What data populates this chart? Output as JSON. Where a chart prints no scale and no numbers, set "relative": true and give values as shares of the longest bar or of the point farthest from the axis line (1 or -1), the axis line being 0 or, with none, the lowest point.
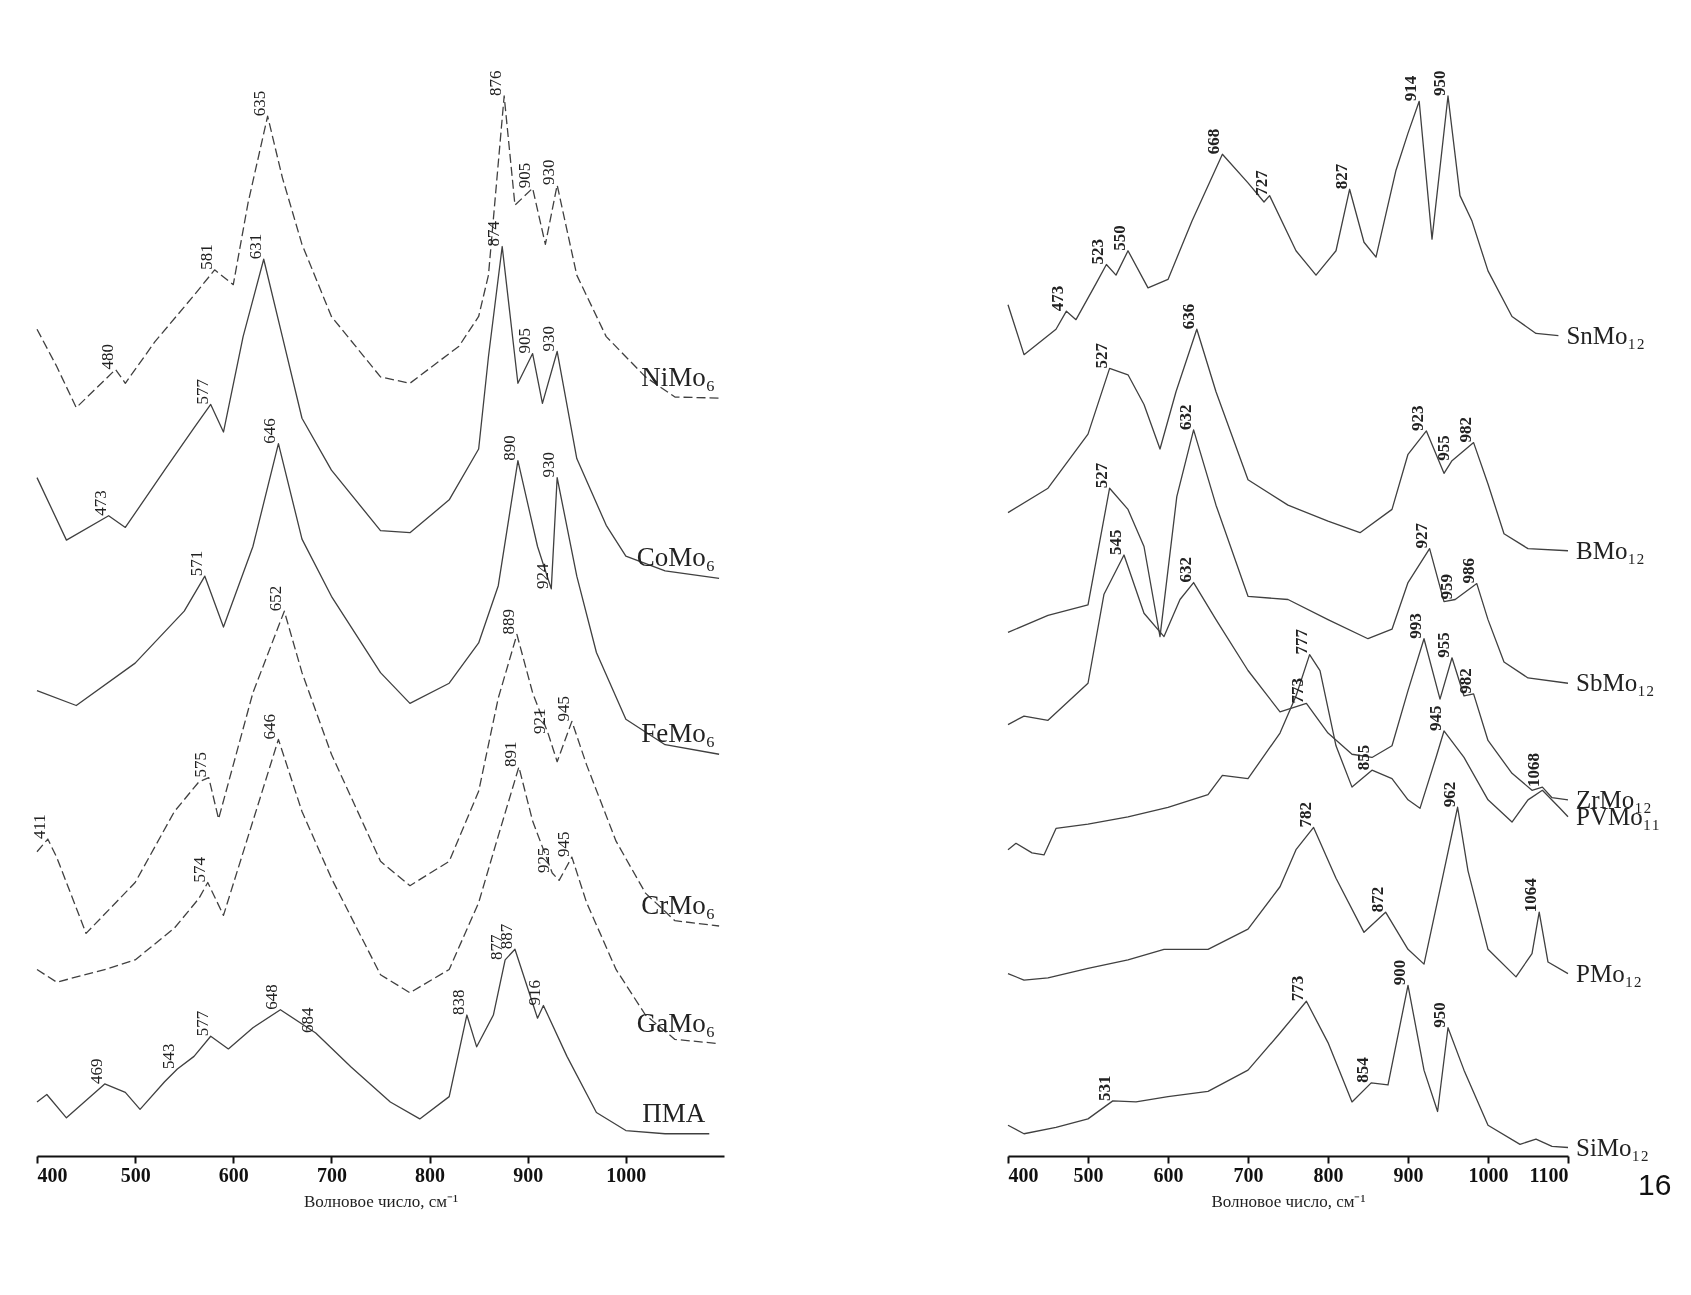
{
  "chart_data": [
    {
      "type": "line",
      "relative": true,
      "xlim": [
        400,
        1100
      ],
      "xticks": [
        400,
        500,
        600,
        700,
        800,
        900,
        1000
      ],
      "xlabel": "Волновое число, см⁻¹",
      "grid": false,
      "series": [
        {
          "name": "NiMo₆",
          "color": "#404040",
          "line_style": "dashed",
          "x": [
            400,
            420,
            440,
            480,
            490,
            520,
            560,
            581,
            600,
            615,
            635,
            650,
            670,
            700,
            750,
            780,
            830,
            850,
            860,
            876,
            887,
            905,
            918,
            930,
            950,
            980,
            1020,
            1050,
            1095
          ],
          "values": [
            0.78,
            0.745,
            0.706,
            0.742,
            0.729,
            0.768,
            0.812,
            0.836,
            0.822,
            0.899,
            0.981,
            0.923,
            0.86,
            0.792,
            0.735,
            0.729,
            0.764,
            0.792,
            0.831,
            1.0,
            0.897,
            0.913,
            0.86,
            0.916,
            0.831,
            0.773,
            0.735,
            0.716,
            0.715
          ]
        },
        {
          "name": "CoMo₆",
          "color": "#404040",
          "line_style": "solid",
          "x": [
            400,
            430,
            473,
            490,
            530,
            560,
            577,
            590,
            610,
            631,
            650,
            670,
            700,
            750,
            780,
            820,
            850,
            860,
            874,
            890,
            905,
            915,
            930,
            950,
            980,
            1000,
            1040,
            1095
          ],
          "values": [
            0.64,
            0.581,
            0.604,
            0.593,
            0.647,
            0.687,
            0.709,
            0.683,
            0.773,
            0.846,
            0.773,
            0.696,
            0.647,
            0.59,
            0.588,
            0.619,
            0.667,
            0.754,
            0.858,
            0.729,
            0.757,
            0.71,
            0.759,
            0.658,
            0.595,
            0.566,
            0.552,
            0.545
          ]
        },
        {
          "name": "FeMo₆",
          "color": "#404040",
          "line_style": "solid",
          "x": [
            400,
            440,
            500,
            550,
            571,
            590,
            620,
            646,
            670,
            700,
            750,
            780,
            820,
            850,
            870,
            890,
            910,
            924,
            930,
            950,
            970,
            1000,
            1040,
            1095
          ],
          "values": [
            0.439,
            0.425,
            0.465,
            0.514,
            0.547,
            0.499,
            0.575,
            0.672,
            0.582,
            0.528,
            0.456,
            0.427,
            0.446,
            0.484,
            0.538,
            0.656,
            0.575,
            0.535,
            0.64,
            0.547,
            0.475,
            0.412,
            0.388,
            0.379
          ]
        },
        {
          "name": "CrMo₆",
          "color": "#404040",
          "line_style": "dashed",
          "x": [
            400,
            411,
            420,
            450,
            500,
            540,
            565,
            575,
            585,
            620,
            652,
            670,
            700,
            750,
            780,
            820,
            850,
            870,
            889,
            905,
            921,
            930,
            945,
            960,
            990,
            1020,
            1050,
            1095
          ],
          "values": [
            0.287,
            0.299,
            0.282,
            0.21,
            0.258,
            0.325,
            0.353,
            0.357,
            0.318,
            0.437,
            0.514,
            0.456,
            0.379,
            0.278,
            0.255,
            0.278,
            0.344,
            0.432,
            0.492,
            0.437,
            0.398,
            0.372,
            0.41,
            0.369,
            0.297,
            0.248,
            0.222,
            0.217
          ]
        },
        {
          "name": "GaMo₆",
          "color": "#404040",
          "line_style": "dashed",
          "x": [
            400,
            420,
            470,
            500,
            540,
            565,
            574,
            590,
            620,
            646,
            670,
            700,
            750,
            780,
            820,
            850,
            870,
            891,
            905,
            925,
            932,
            945,
            960,
            990,
            1020,
            1050,
            1095
          ],
          "values": [
            0.176,
            0.164,
            0.176,
            0.185,
            0.215,
            0.243,
            0.258,
            0.227,
            0.316,
            0.393,
            0.325,
            0.262,
            0.171,
            0.154,
            0.176,
            0.239,
            0.302,
            0.367,
            0.316,
            0.267,
            0.26,
            0.282,
            0.239,
            0.176,
            0.133,
            0.11,
            0.106
          ]
        },
        {
          "name": "ПМА",
          "color": "#404040",
          "line_style": "solid",
          "x": [
            400,
            410,
            430,
            469,
            490,
            505,
            530,
            543,
            560,
            577,
            595,
            620,
            648,
            684,
            720,
            760,
            790,
            820,
            838,
            848,
            865,
            877,
            887,
            910,
            916,
            940,
            970,
            1000,
            1040,
            1085
          ],
          "values": [
            0.051,
            0.058,
            0.036,
            0.068,
            0.06,
            0.044,
            0.07,
            0.082,
            0.094,
            0.113,
            0.101,
            0.121,
            0.138,
            0.116,
            0.084,
            0.051,
            0.035,
            0.056,
            0.133,
            0.103,
            0.133,
            0.185,
            0.195,
            0.13,
            0.142,
            0.094,
            0.041,
            0.024,
            0.021,
            0.021
          ]
        }
      ],
      "annotations": [
        {
          "text": "480",
          "x": 480,
          "y": 0.742
        },
        {
          "text": "581",
          "x": 581,
          "y": 0.836
        },
        {
          "text": "635",
          "x": 635,
          "y": 0.981
        },
        {
          "text": "876",
          "x": 876,
          "y": 1.0
        },
        {
          "text": "905",
          "x": 905,
          "y": 0.913
        },
        {
          "text": "930",
          "x": 930,
          "y": 0.916
        },
        {
          "text": "473",
          "x": 473,
          "y": 0.604
        },
        {
          "text": "577",
          "x": 577,
          "y": 0.709
        },
        {
          "text": "631",
          "x": 631,
          "y": 0.846
        },
        {
          "text": "874",
          "x": 874,
          "y": 0.858
        },
        {
          "text": "905",
          "x": 905,
          "y": 0.757
        },
        {
          "text": "930",
          "x": 930,
          "y": 0.759
        },
        {
          "text": "571",
          "x": 571,
          "y": 0.547
        },
        {
          "text": "646",
          "x": 646,
          "y": 0.672
        },
        {
          "text": "890",
          "x": 890,
          "y": 0.656
        },
        {
          "text": "924",
          "x": 924,
          "y": 0.535
        },
        {
          "text": "930",
          "x": 930,
          "y": 0.64
        },
        {
          "text": "411",
          "x": 411,
          "y": 0.299
        },
        {
          "text": "575",
          "x": 575,
          "y": 0.357
        },
        {
          "text": "652",
          "x": 652,
          "y": 0.514
        },
        {
          "text": "889",
          "x": 889,
          "y": 0.492
        },
        {
          "text": "921",
          "x": 921,
          "y": 0.398
        },
        {
          "text": "945",
          "x": 945,
          "y": 0.41
        },
        {
          "text": "574",
          "x": 574,
          "y": 0.258
        },
        {
          "text": "646",
          "x": 646,
          "y": 0.393
        },
        {
          "text": "891",
          "x": 891,
          "y": 0.367
        },
        {
          "text": "925",
          "x": 925,
          "y": 0.267
        },
        {
          "text": "945",
          "x": 945,
          "y": 0.282
        },
        {
          "text": "469",
          "x": 469,
          "y": 0.068
        },
        {
          "text": "543",
          "x": 543,
          "y": 0.082
        },
        {
          "text": "577",
          "x": 577,
          "y": 0.113
        },
        {
          "text": "648",
          "x": 648,
          "y": 0.138
        },
        {
          "text": "684",
          "x": 684,
          "y": 0.116
        },
        {
          "text": "838",
          "x": 838,
          "y": 0.133
        },
        {
          "text": "877",
          "x": 877,
          "y": 0.185
        },
        {
          "text": "887",
          "x": 887,
          "y": 0.195
        },
        {
          "text": "916",
          "x": 916,
          "y": 0.142
        }
      ]
    },
    {
      "type": "line",
      "relative": true,
      "xlim": [
        400,
        1100
      ],
      "xticks": [
        400,
        500,
        600,
        700,
        800,
        900,
        1000,
        1100
      ],
      "xlabel": "Волновое число, см⁻¹",
      "grid": false,
      "series": [
        {
          "name": "SnMo₁₂",
          "color": "#404040",
          "line_style": "solid",
          "x": [
            400,
            420,
            460,
            473,
            485,
            510,
            523,
            535,
            550,
            575,
            600,
            630,
            668,
            700,
            720,
            727,
            760,
            785,
            810,
            827,
            845,
            860,
            885,
            900,
            914,
            930,
            950,
            965,
            980,
            1000,
            1030,
            1060,
            1088
          ],
          "values": [
            0.803,
            0.756,
            0.78,
            0.797,
            0.789,
            0.823,
            0.841,
            0.831,
            0.854,
            0.819,
            0.827,
            0.882,
            0.945,
            0.918,
            0.9,
            0.906,
            0.854,
            0.831,
            0.854,
            0.912,
            0.862,
            0.848,
            0.93,
            0.965,
            0.995,
            0.865,
            1.0,
            0.906,
            0.882,
            0.835,
            0.792,
            0.776,
            0.774
          ]
        },
        {
          "name": "BMo₁₂",
          "color": "#404040",
          "line_style": "solid",
          "x": [
            400,
            450,
            500,
            527,
            550,
            570,
            590,
            610,
            636,
            660,
            700,
            750,
            800,
            840,
            880,
            900,
            923,
            945,
            955,
            982,
            1000,
            1020,
            1050,
            1100
          ],
          "values": [
            0.607,
            0.63,
            0.681,
            0.743,
            0.737,
            0.709,
            0.667,
            0.721,
            0.78,
            0.721,
            0.638,
            0.614,
            0.599,
            0.588,
            0.61,
            0.662,
            0.684,
            0.644,
            0.656,
            0.673,
            0.634,
            0.587,
            0.573,
            0.571
          ]
        },
        {
          "name": "SbMo₁₂",
          "color": "#404040",
          "line_style": "solid",
          "x": [
            400,
            450,
            500,
            527,
            550,
            570,
            590,
            611,
            632,
            660,
            700,
            750,
            800,
            850,
            880,
            900,
            927,
            945,
            959,
            986,
            1000,
            1020,
            1050,
            1100
          ],
          "values": [
            0.494,
            0.51,
            0.52,
            0.63,
            0.61,
            0.575,
            0.49,
            0.622,
            0.685,
            0.614,
            0.528,
            0.525,
            0.506,
            0.488,
            0.497,
            0.541,
            0.573,
            0.523,
            0.525,
            0.54,
            0.506,
            0.466,
            0.451,
            0.446
          ]
        },
        {
          "name": "ZrMo₁₂",
          "color": "#404040",
          "line_style": "solid",
          "x": [
            400,
            420,
            450,
            500,
            520,
            545,
            570,
            595,
            615,
            632,
            660,
            700,
            740,
            773,
            800,
            830,
            855,
            880,
            900,
            920,
            940,
            955,
            970,
            982,
            1000,
            1030,
            1055,
            1068,
            1080,
            1100
          ],
          "values": [
            0.407,
            0.415,
            0.411,
            0.446,
            0.53,
            0.567,
            0.512,
            0.49,
            0.525,
            0.541,
            0.506,
            0.458,
            0.419,
            0.427,
            0.399,
            0.379,
            0.376,
            0.387,
            0.439,
            0.488,
            0.431,
            0.47,
            0.434,
            0.436,
            0.392,
            0.361,
            0.345,
            0.348,
            0.338,
            0.336
          ]
        },
        {
          "name": "PVMo₁₁",
          "color": "#404040",
          "line_style": "solid",
          "x": [
            400,
            410,
            430,
            445,
            460,
            500,
            550,
            600,
            650,
            668,
            700,
            740,
            760,
            777,
            790,
            810,
            830,
            855,
            880,
            900,
            915,
            935,
            945,
            970,
            1000,
            1030,
            1050,
            1068,
            1090,
            1100
          ],
          "values": [
            0.289,
            0.295,
            0.286,
            0.284,
            0.309,
            0.313,
            0.32,
            0.329,
            0.341,
            0.359,
            0.356,
            0.399,
            0.434,
            0.473,
            0.458,
            0.387,
            0.348,
            0.364,
            0.356,
            0.336,
            0.328,
            0.376,
            0.401,
            0.376,
            0.336,
            0.315,
            0.336,
            0.345,
            0.328,
            0.32
          ]
        },
        {
          "name": "PMo₁₂",
          "color": "#404040",
          "line_style": "solid",
          "x": [
            400,
            420,
            450,
            500,
            550,
            595,
            650,
            700,
            740,
            760,
            782,
            810,
            845,
            872,
            900,
            920,
            945,
            962,
            975,
            1000,
            1035,
            1055,
            1064,
            1075,
            1100
          ],
          "values": [
            0.172,
            0.166,
            0.168,
            0.177,
            0.185,
            0.195,
            0.195,
            0.214,
            0.254,
            0.289,
            0.31,
            0.262,
            0.211,
            0.23,
            0.195,
            0.181,
            0.269,
            0.329,
            0.269,
            0.195,
            0.169,
            0.191,
            0.23,
            0.183,
            0.172
          ]
        },
        {
          "name": "SiMo₁₂",
          "color": "#404040",
          "line_style": "solid",
          "x": [
            400,
            420,
            460,
            500,
            531,
            560,
            600,
            650,
            700,
            740,
            773,
            800,
            830,
            854,
            875,
            900,
            920,
            937,
            950,
            970,
            1000,
            1040,
            1060,
            1080,
            1100
          ],
          "values": [
            0.029,
            0.021,
            0.027,
            0.035,
            0.052,
            0.051,
            0.056,
            0.061,
            0.081,
            0.116,
            0.146,
            0.107,
            0.051,
            0.069,
            0.067,
            0.161,
            0.081,
            0.042,
            0.121,
            0.081,
            0.029,
            0.011,
            0.016,
            0.009,
            0.008
          ]
        }
      ],
      "annotations": [
        {
          "text": "473",
          "x": 473,
          "y": 0.797
        },
        {
          "text": "523",
          "x": 523,
          "y": 0.841
        },
        {
          "text": "550",
          "x": 550,
          "y": 0.854
        },
        {
          "text": "668",
          "x": 668,
          "y": 0.945
        },
        {
          "text": "727",
          "x": 727,
          "y": 0.906
        },
        {
          "text": "827",
          "x": 827,
          "y": 0.912
        },
        {
          "text": "914",
          "x": 914,
          "y": 0.995
        },
        {
          "text": "950",
          "x": 950,
          "y": 1.0
        },
        {
          "text": "527",
          "x": 527,
          "y": 0.743
        },
        {
          "text": "636",
          "x": 636,
          "y": 0.78
        },
        {
          "text": "923",
          "x": 923,
          "y": 0.684
        },
        {
          "text": "955",
          "x": 955,
          "y": 0.656
        },
        {
          "text": "982",
          "x": 982,
          "y": 0.673
        },
        {
          "text": "527",
          "x": 527,
          "y": 0.63
        },
        {
          "text": "632",
          "x": 632,
          "y": 0.685
        },
        {
          "text": "927",
          "x": 927,
          "y": 0.573
        },
        {
          "text": "959",
          "x": 959,
          "y": 0.525
        },
        {
          "text": "986",
          "x": 986,
          "y": 0.54
        },
        {
          "text": "545",
          "x": 545,
          "y": 0.567
        },
        {
          "text": "632",
          "x": 632,
          "y": 0.541
        },
        {
          "text": "773",
          "x": 773,
          "y": 0.427
        },
        {
          "text": "993",
          "x": 920,
          "y": 0.488
        },
        {
          "text": "955",
          "x": 955,
          "y": 0.47
        },
        {
          "text": "982",
          "x": 982,
          "y": 0.436
        },
        {
          "text": "1068",
          "x": 1068,
          "y": 0.348
        },
        {
          "text": "777",
          "x": 777,
          "y": 0.473
        },
        {
          "text": "855",
          "x": 855,
          "y": 0.364
        },
        {
          "text": "945",
          "x": 945,
          "y": 0.401
        },
        {
          "text": "782",
          "x": 782,
          "y": 0.31
        },
        {
          "text": "872",
          "x": 872,
          "y": 0.23
        },
        {
          "text": "962",
          "x": 962,
          "y": 0.329
        },
        {
          "text": "1064",
          "x": 1064,
          "y": 0.23
        },
        {
          "text": "531",
          "x": 531,
          "y": 0.052
        },
        {
          "text": "773",
          "x": 773,
          "y": 0.146
        },
        {
          "text": "854",
          "x": 854,
          "y": 0.069
        },
        {
          "text": "900",
          "x": 900,
          "y": 0.161
        },
        {
          "text": "950",
          "x": 950,
          "y": 0.121
        },
        "16"
      ]
    }
  ]
}
